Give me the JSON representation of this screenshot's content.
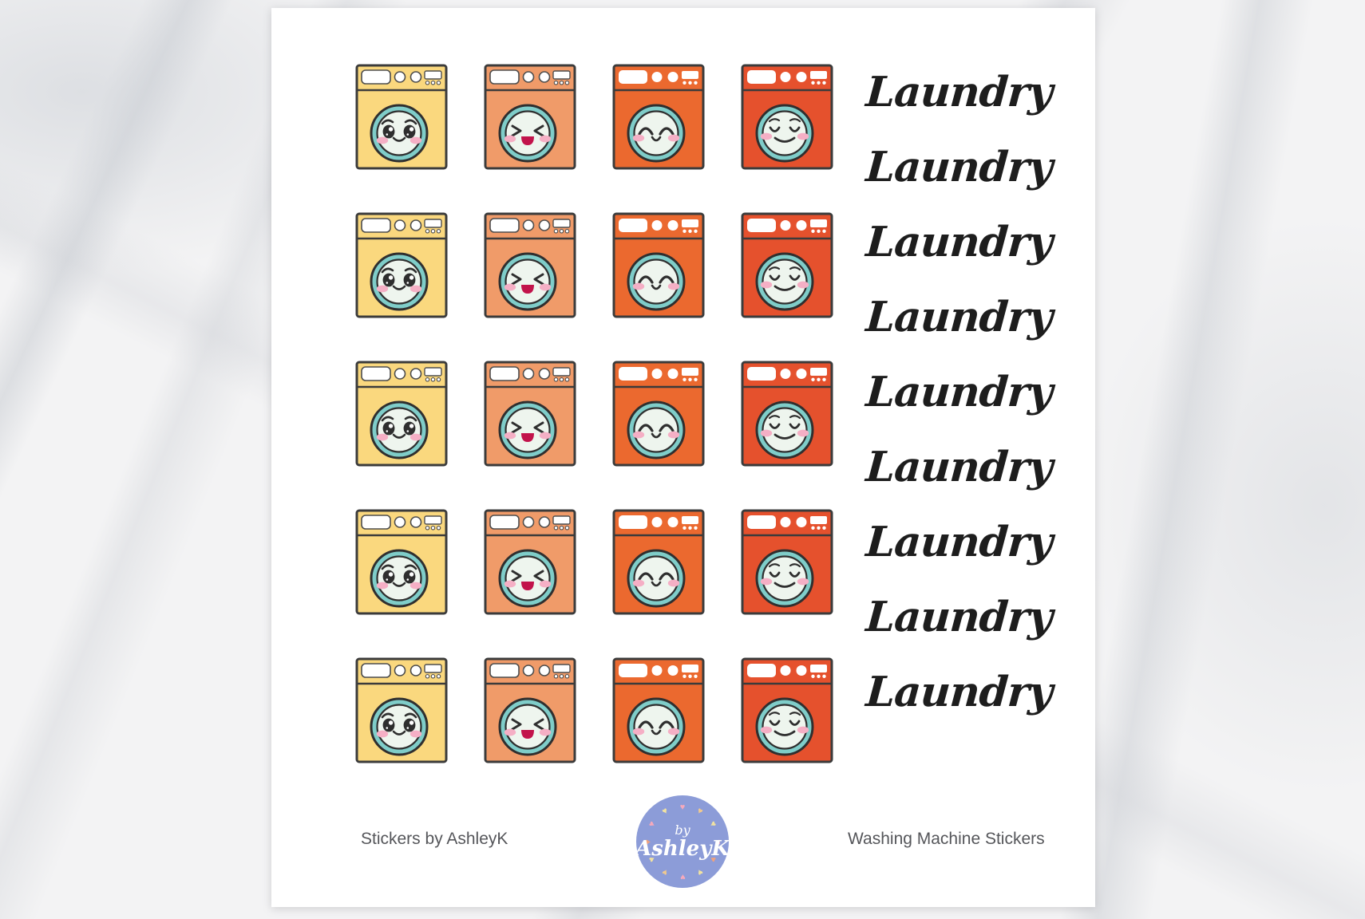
{
  "page": {
    "background_style": "white-marble",
    "sheet_color": "#ffffff"
  },
  "sheet": {
    "machines": {
      "rows": 5,
      "outline_color": "#3b3b3b",
      "door_ring_color": "#7fcdc9",
      "door_glass_color": "#eef5ee",
      "cheek_color": "#f5afc5",
      "mouth_fill_color": "#c2134b",
      "variants": [
        {
          "icon": "washing-machine-sticker-yellow",
          "color": "#fad87e",
          "face": "sparkle",
          "panel_outline": true
        },
        {
          "icon": "washing-machine-sticker-salmon",
          "color": "#f09b69",
          "face": "laughing",
          "panel_outline": true
        },
        {
          "icon": "washing-machine-sticker-orange",
          "color": "#eb692f",
          "face": "happy",
          "panel_outline": false
        },
        {
          "icon": "washing-machine-sticker-red",
          "color": "#e5512d",
          "face": "content",
          "panel_outline": false
        }
      ]
    },
    "laundry_labels": [
      "Laundry",
      "Laundry",
      "Laundry",
      "Laundry",
      "Laundry",
      "Laundry",
      "Laundry",
      "Laundry",
      "Laundry"
    ],
    "laundry_text_color": "#1d1d1d",
    "footer": {
      "left": "Stickers by AshleyK",
      "right": "Washing Machine Stickers"
    },
    "logo": {
      "line1": "by",
      "line2": "AshleyK",
      "circle_color": "#8c9cd8",
      "heart_colors": [
        "#f5a9bc",
        "#f0c98f",
        "#f2e3a1",
        "#f5a9bc",
        "#efa27e",
        "#f2e3a1",
        "#f5a9bc",
        "#f0c98f",
        "#f2e3a1",
        "#efa27e",
        "#f5a9bc",
        "#f2e3a1"
      ]
    }
  }
}
